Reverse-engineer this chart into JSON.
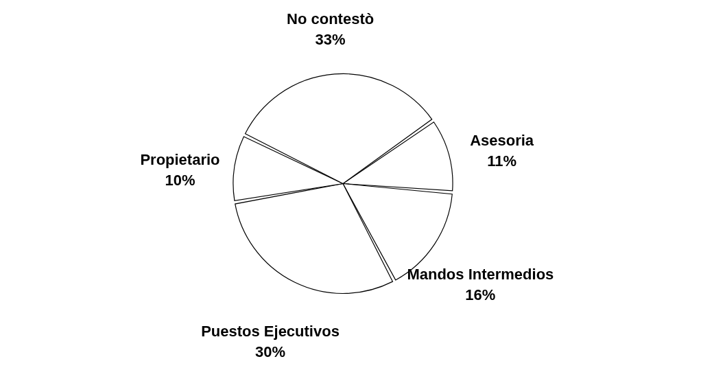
{
  "chart_data": {
    "type": "pie",
    "categories": [
      "Asesoria",
      "Mandos Intermedios",
      "Puestos Ejecutivos",
      "Propietario",
      "No contestò"
    ],
    "values": [
      11,
      16,
      30,
      10,
      33
    ],
    "value_labels": [
      "11%",
      "16%",
      "30%",
      "10%",
      "33%"
    ],
    "colors": [
      "#ffffff",
      "#ffffff",
      "#ffffff",
      "#ffffff",
      "#ffffff"
    ],
    "legend": false
  }
}
